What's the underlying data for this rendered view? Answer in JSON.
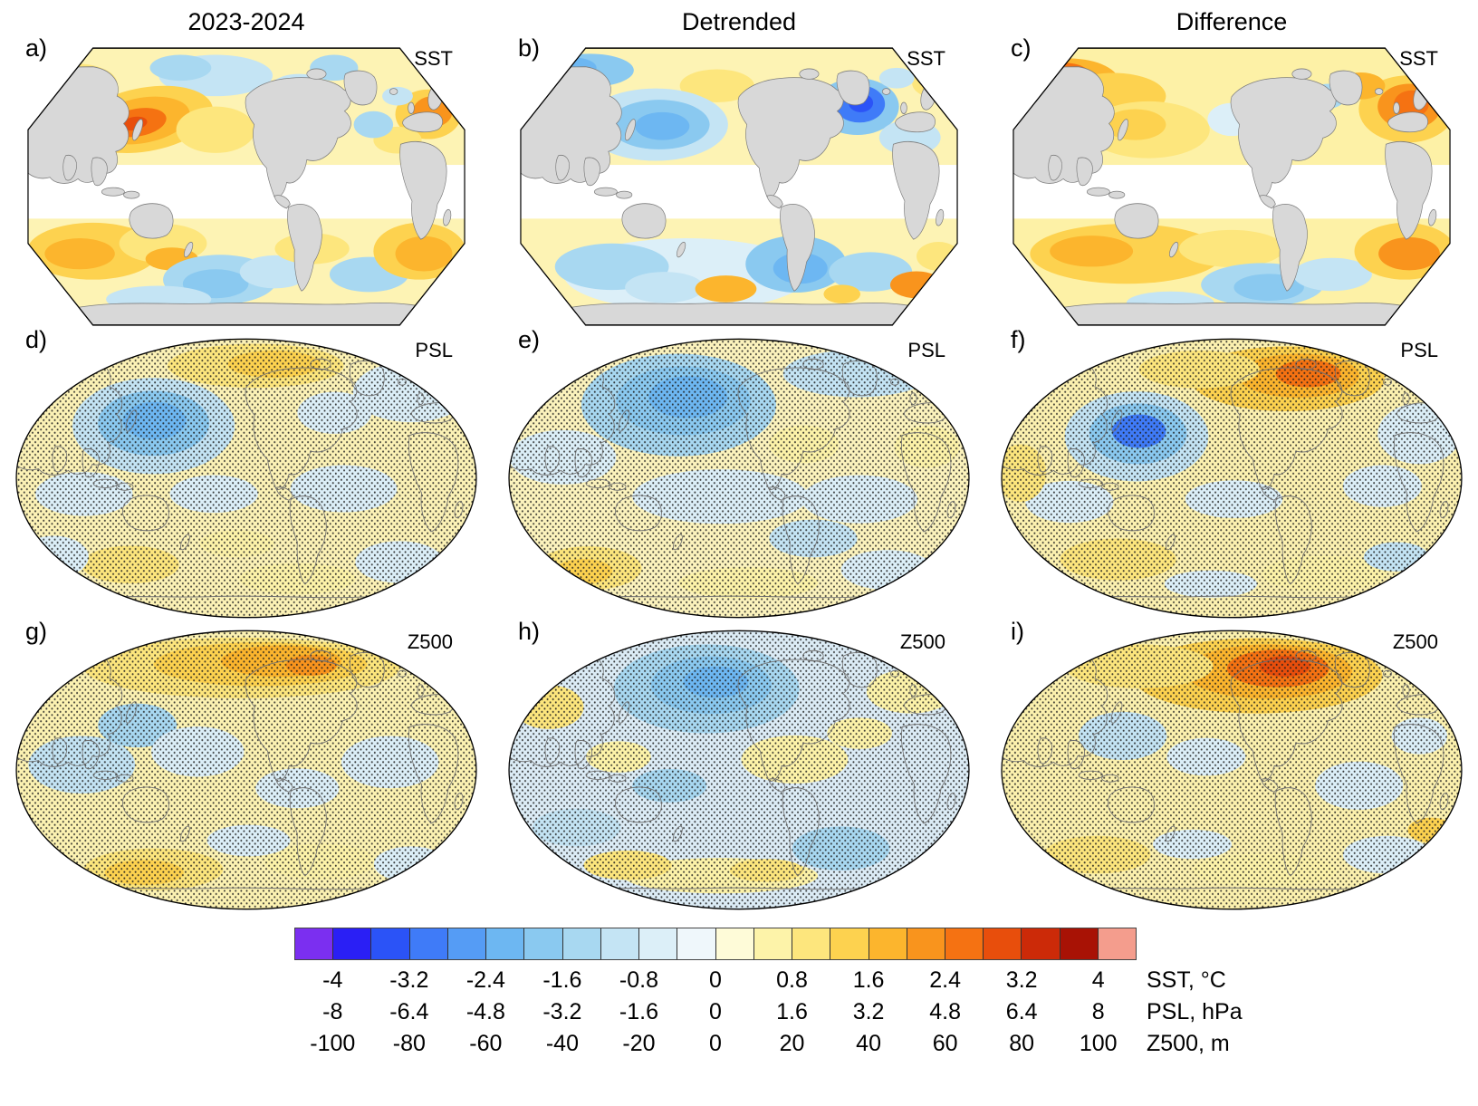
{
  "figure": {
    "columns": [
      "2023-2024",
      "Detrended",
      "Difference"
    ],
    "panels": [
      {
        "label": "a)",
        "variable": "SST"
      },
      {
        "label": "b)",
        "variable": "SST"
      },
      {
        "label": "c)",
        "variable": "SST"
      },
      {
        "label": "d)",
        "variable": "PSL"
      },
      {
        "label": "e)",
        "variable": "PSL"
      },
      {
        "label": "f)",
        "variable": "PSL"
      },
      {
        "label": "g)",
        "variable": "Z500"
      },
      {
        "label": "h)",
        "variable": "Z500"
      },
      {
        "label": "i)",
        "variable": "Z500"
      }
    ],
    "colorbar": {
      "colors": [
        "#7b2ff0",
        "#2a1ff5",
        "#2b53f7",
        "#3f7bf8",
        "#559cf5",
        "#6db7f2",
        "#8ac9f0",
        "#a8d8f1",
        "#c4e4f4",
        "#dceff8",
        "#eff7fb",
        "#fefbd8",
        "#fdf3a9",
        "#fde67d",
        "#fdd24f",
        "#fcb52d",
        "#f9941d",
        "#f57212",
        "#e84e0c",
        "#cc2a08",
        "#a81205",
        "#f49d8d"
      ],
      "rows": [
        {
          "unit": "SST, °C",
          "ticks": [
            "-4",
            "-3.2",
            "-2.4",
            "-1.6",
            "-0.8",
            "0",
            "0.8",
            "1.6",
            "2.4",
            "3.2",
            "4"
          ]
        },
        {
          "unit": "PSL, hPa",
          "ticks": [
            "-8",
            "-6.4",
            "-4.8",
            "-3.2",
            "-1.6",
            "0",
            "1.6",
            "3.2",
            "4.8",
            "6.4",
            "8"
          ]
        },
        {
          "unit": "Z500, m",
          "ticks": [
            "-100",
            "-80",
            "-60",
            "-40",
            "-20",
            "0",
            "20",
            "40",
            "60",
            "80",
            "100"
          ]
        }
      ]
    }
  },
  "chart_data": {
    "type": "heatmap",
    "layout": {
      "rows": 3,
      "cols": 3
    },
    "column_titles": [
      "2023-2024",
      "Detrended",
      "Difference"
    ],
    "row_variables": [
      {
        "name": "SST",
        "unit": "°C",
        "levels": [
          -4,
          -3.2,
          -2.4,
          -1.6,
          -0.8,
          0,
          0.8,
          1.6,
          2.4,
          3.2,
          4
        ]
      },
      {
        "name": "PSL",
        "unit": "hPa",
        "levels": [
          -8,
          -6.4,
          -4.8,
          -3.2,
          -1.6,
          0,
          1.6,
          3.2,
          4.8,
          6.4,
          8
        ]
      },
      {
        "name": "Z500",
        "unit": "m",
        "levels": [
          -100,
          -80,
          -60,
          -40,
          -20,
          0,
          20,
          40,
          60,
          80,
          100
        ]
      }
    ],
    "panels": [
      {
        "id": "a",
        "column": "2023-2024",
        "variable": "SST",
        "features": "warm anomaly NW Pacific and N Atlantic; tropics masked white; mixed warm/cool Southern Ocean"
      },
      {
        "id": "b",
        "column": "Detrended",
        "variable": "SST",
        "features": "cool N Pacific, strong cold spot near Greenland; mostly cool Southern Ocean"
      },
      {
        "id": "c",
        "column": "Difference",
        "variable": "SST",
        "features": "warm NE Asia/Arctic and strong warm N Atlantic; warm Southern Ocean with cool patch"
      },
      {
        "id": "d",
        "column": "2023-2024",
        "variable": "PSL",
        "features": "negative anomaly over N Pacific; weak positive elsewhere; stippled"
      },
      {
        "id": "e",
        "column": "Detrended",
        "variable": "PSL",
        "features": "broad negative anomaly over N Pacific/Arctic; stippled"
      },
      {
        "id": "f",
        "column": "Difference",
        "variable": "PSL",
        "features": "positive anomaly over Arctic/Greenland, negative over N Pacific; stippled"
      },
      {
        "id": "g",
        "column": "2023-2024",
        "variable": "Z500",
        "features": "positive band across Arctic high latitudes; weak negative mid-latitudes; stippled"
      },
      {
        "id": "h",
        "column": "Detrended",
        "variable": "Z500",
        "features": "widespread negative anomalies, strongest top-center; stippled"
      },
      {
        "id": "i",
        "column": "Difference",
        "variable": "Z500",
        "features": "strong positive anomaly over Arctic near Greenland; stippled"
      }
    ],
    "colorbar_colors": [
      "#7b2ff0",
      "#2a1ff5",
      "#2b53f7",
      "#3f7bf8",
      "#559cf5",
      "#6db7f2",
      "#8ac9f0",
      "#a8d8f1",
      "#c4e4f4",
      "#dceff8",
      "#eff7fb",
      "#fefbd8",
      "#fdf3a9",
      "#fde67d",
      "#fdd24f",
      "#fcb52d",
      "#f9941d",
      "#f57212",
      "#e84e0c",
      "#cc2a08",
      "#a81205",
      "#f49d8d"
    ],
    "projection": "global maps, Pacific-centered",
    "stippling": "PSL and Z500 panels carry dot stippling over most of the map"
  }
}
